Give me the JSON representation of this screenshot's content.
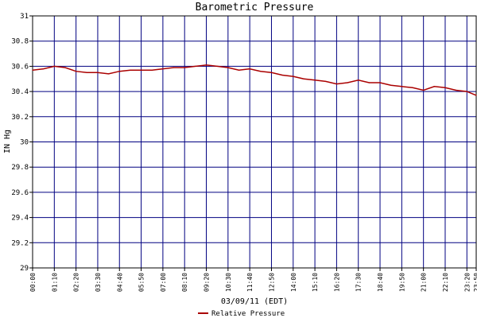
{
  "chart_data": {
    "type": "line",
    "title": "Barometric Pressure",
    "xlabel": "03/09/11 (EDT)",
    "ylabel": "IN Hg",
    "ylim": [
      29,
      31
    ],
    "y_ticks": [
      "29",
      "29.2",
      "29.4",
      "29.6",
      "29.8",
      "30",
      "30.2",
      "30.4",
      "30.6",
      "30.8",
      "31"
    ],
    "x_ticks": [
      "00:00",
      "01:10",
      "02:20",
      "03:30",
      "04:40",
      "05:50",
      "07:00",
      "08:10",
      "09:20",
      "10:30",
      "11:40",
      "12:50",
      "14:00",
      "15:10",
      "16:20",
      "17:30",
      "18:40",
      "19:50",
      "21:00",
      "22:10",
      "23:20",
      "23:50"
    ],
    "grid": true,
    "legend_position": "bottom-center",
    "series": [
      {
        "name": "Relative Pressure",
        "color": "#aa0000",
        "x": [
          "00:00",
          "00:35",
          "01:10",
          "01:45",
          "02:20",
          "02:55",
          "03:30",
          "04:05",
          "04:40",
          "05:15",
          "05:50",
          "06:25",
          "07:00",
          "07:35",
          "08:10",
          "08:45",
          "09:20",
          "09:55",
          "10:30",
          "11:05",
          "11:40",
          "12:15",
          "12:50",
          "13:25",
          "14:00",
          "14:35",
          "15:10",
          "15:45",
          "16:20",
          "16:55",
          "17:30",
          "18:05",
          "18:40",
          "19:15",
          "19:50",
          "20:25",
          "21:00",
          "21:35",
          "22:10",
          "22:45",
          "23:20",
          "23:50"
        ],
        "values": [
          30.57,
          30.58,
          30.6,
          30.59,
          30.56,
          30.55,
          30.55,
          30.54,
          30.56,
          30.57,
          30.57,
          30.57,
          30.58,
          30.59,
          30.59,
          30.6,
          30.61,
          30.6,
          30.59,
          30.57,
          30.58,
          30.56,
          30.55,
          30.53,
          30.52,
          30.5,
          30.49,
          30.48,
          30.46,
          30.47,
          30.49,
          30.47,
          30.47,
          30.45,
          30.44,
          30.43,
          30.41,
          30.44,
          30.43,
          30.41,
          30.4,
          30.37
        ]
      }
    ]
  }
}
